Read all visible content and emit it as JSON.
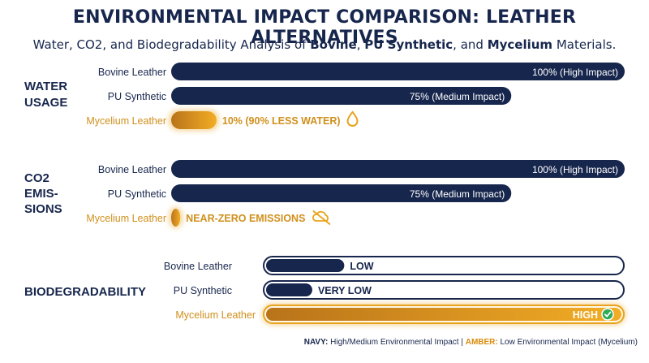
{
  "title": "ENVIRONMENTAL IMPACT COMPARISON: LEATHER ALTERNATIVES",
  "subtitle": {
    "prefix": "Water, CO2, and Biodegradability Analysis of ",
    "m1": "Bovine",
    "sep1": ", ",
    "m2": "PU Synthetic",
    "sep2": ", and ",
    "m3": "Mycelium",
    "suffix": " Materials."
  },
  "colors": {
    "navy": "#17264d",
    "amber": "#e9a21b",
    "amber_dark": "#b9731a",
    "white": "#ffffff"
  },
  "chart_data": [
    {
      "type": "bar",
      "group": "WATER USAGE",
      "orientation": "horizontal",
      "categories": [
        "Bovine Leather",
        "PU Synthetic",
        "Mycelium Leather"
      ],
      "values": [
        100,
        75,
        10
      ],
      "unit": "%",
      "labels": [
        "100% (High Impact)",
        "75% (Medium Impact)",
        "10% (90% LESS WATER)"
      ],
      "icons": [
        "",
        "",
        "water-drop-icon"
      ]
    },
    {
      "type": "bar",
      "group": "CO2 EMIS-SIONS",
      "orientation": "horizontal",
      "categories": [
        "Bovine Leather",
        "PU Synthetic",
        "Mycelium Leather"
      ],
      "values": [
        100,
        75,
        2
      ],
      "unit": "%",
      "labels": [
        "100% (High Impact)",
        "75% (Medium Impact)",
        "NEAR-ZERO EMISSIONS"
      ],
      "icons": [
        "",
        "",
        "cloud-crossed-icon"
      ]
    },
    {
      "type": "bar",
      "group": "BIODEGRADABILITY",
      "orientation": "horizontal",
      "categories": [
        "Bovine Leather",
        "PU Synthetic",
        "Mycelium Leather"
      ],
      "values": [
        0.22,
        0.13,
        1.0
      ],
      "labels": [
        "LOW",
        "VERY LOW",
        "HIGH"
      ],
      "icons": [
        "",
        "",
        "check-circle-icon"
      ]
    }
  ],
  "group_titles": {
    "water": [
      "WATER",
      "USAGE"
    ],
    "co2": [
      "CO2",
      "EMIS-",
      "SIONS"
    ],
    "bio": [
      "BIODEGRADABILITY"
    ]
  },
  "legend": {
    "navy_key": "NAVY:",
    "navy_text": " High/Medium Environmental Impact | ",
    "amber_key": "AMBER:",
    "amber_text": " Low Environmental Impact (Mycelium)"
  }
}
